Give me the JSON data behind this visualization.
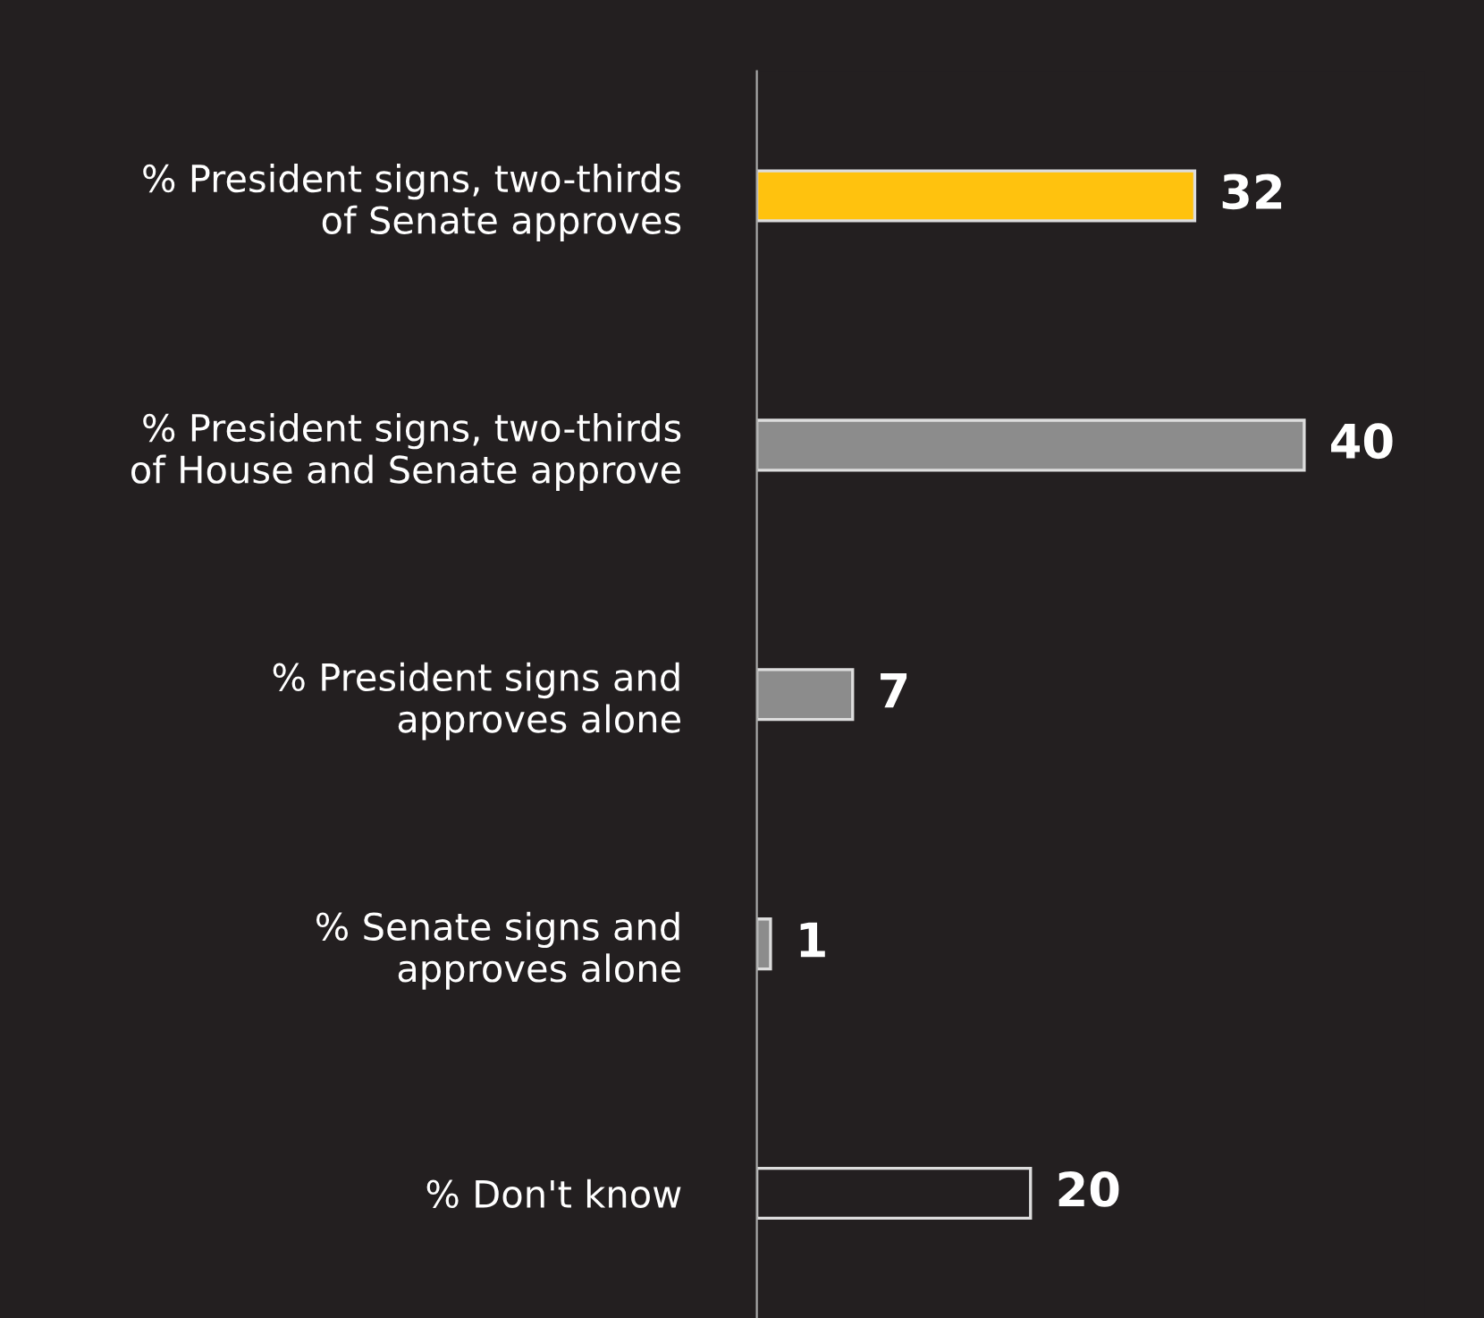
{
  "chart_data": {
    "type": "bar",
    "orientation": "horizontal",
    "categories": [
      "% President signs, two-thirds\nof Senate approves",
      "% President signs, two-thirds\nof House and Senate approve",
      "% President signs and\napproves alone",
      "% Senate signs and\napproves alone",
      "% Don't know"
    ],
    "values": [
      32,
      40,
      7,
      1,
      20
    ],
    "colors": [
      "#ffc20e",
      "#8c8c8c",
      "#8c8c8c",
      "#8c8c8c",
      "#231f20"
    ],
    "data_labels": true,
    "grid": false,
    "legend": false
  }
}
